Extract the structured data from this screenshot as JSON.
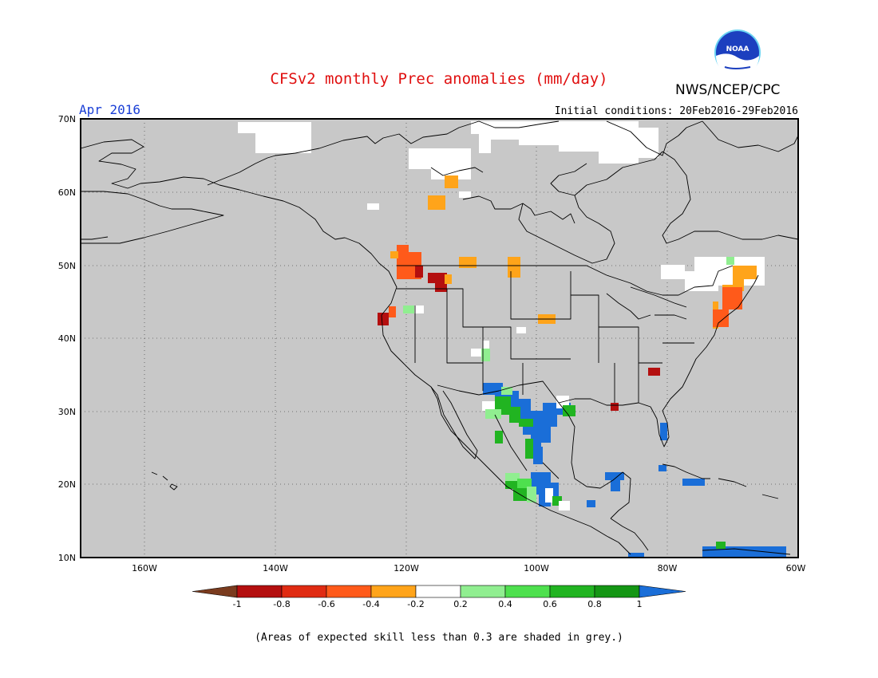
{
  "header": {
    "title": "CFSv2 monthly Prec anomalies (mm/day)",
    "org": "NWS/NCEP/CPC",
    "logo_text": "NOAA",
    "month": "Apr 2016",
    "initial_conditions": "Initial conditions: 20Feb2016-29Feb2016"
  },
  "footer": "(Areas of expected skill less than 0.3 are shaded in grey.)",
  "map": {
    "lat_labels": [
      "70N",
      "60N",
      "50N",
      "40N",
      "30N",
      "20N",
      "10N"
    ],
    "lon_labels": [
      "160W",
      "140W",
      "120W",
      "100W",
      "80W",
      "60W"
    ],
    "background": "#c8c8c8",
    "gridlines": "dotted"
  },
  "colorbar": {
    "ticks": [
      "-1",
      "-0.8",
      "-0.6",
      "-0.4",
      "-0.2",
      "0.2",
      "0.4",
      "0.6",
      "0.8",
      "1"
    ],
    "colors": [
      "#7a3b1e",
      "#b40f0f",
      "#e02b12",
      "#ff5a1a",
      "#ffa41a",
      "#ffffff",
      "#90ee90",
      "#4ee04e",
      "#21b421",
      "#149614",
      "#1a6ed8"
    ]
  }
}
